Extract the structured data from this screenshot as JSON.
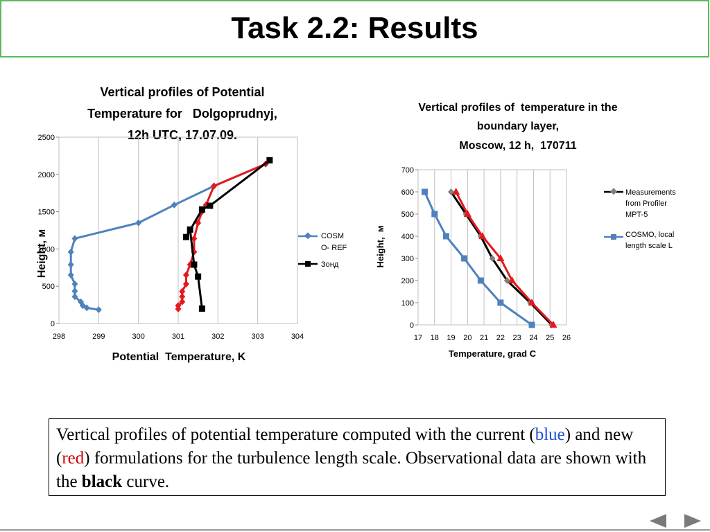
{
  "slide": {
    "title": "Task 2.2: Results",
    "caption": {
      "p1": "Vertical profiles of potential temperature computed with the current (",
      "blue": "blue",
      "p2": ") and new (",
      "red": "red",
      "p3": ") formulations for the turbulence length scale. Observational data are shown with the ",
      "black": "black",
      "p4": " curve."
    },
    "nav": {
      "prev_icon": "triangle-left-icon",
      "next_icon": "triangle-right-icon"
    },
    "colors": {
      "title_border": "#5cb85c",
      "blue": "#4f81bd",
      "red": "#e31a1c",
      "black": "#000000",
      "gray_marker": "#7f7f7f"
    }
  },
  "chart_data": [
    {
      "type": "line",
      "title": [
        "Vertical profiles of  Potential",
        "Temperature for   Dolgoprudnyj,",
        "12h UTC,  17.07.09."
      ],
      "xlabel": "Potential  Temperature, K",
      "ylabel": "Height, м",
      "xlim": [
        298,
        304
      ],
      "ylim": [
        0,
        2500
      ],
      "xticks": [
        "298",
        "299",
        "300",
        "301",
        "302",
        "303",
        "304"
      ],
      "yticks": [
        "0",
        "500",
        "1000",
        "1500",
        "2000",
        "2500"
      ],
      "grid": "vertical",
      "legend": "right",
      "series": [
        {
          "name": "COSMO- REF",
          "legend_lines": [
            "COSM",
            "O- REF"
          ],
          "color": "#4f81bd",
          "marker": "diamond",
          "points": [
            [
              299.0,
              185
            ],
            [
              298.7,
              210
            ],
            [
              298.6,
              240
            ],
            [
              298.55,
              290
            ],
            [
              298.4,
              360
            ],
            [
              298.4,
              435
            ],
            [
              298.4,
              530
            ],
            [
              298.3,
              650
            ],
            [
              298.3,
              790
            ],
            [
              298.3,
              960
            ],
            [
              298.4,
              1140
            ],
            [
              300.0,
              1350
            ],
            [
              300.9,
              1590
            ],
            [
              301.9,
              1845
            ],
            [
              303.2,
              2140
            ]
          ]
        },
        {
          "name": "",
          "color": "#e31a1c",
          "marker": "diamond",
          "points": [
            [
              301.0,
              195
            ],
            [
              301.0,
              240
            ],
            [
              301.1,
              290
            ],
            [
              301.1,
              360
            ],
            [
              301.1,
              430
            ],
            [
              301.2,
              530
            ],
            [
              301.2,
              650
            ],
            [
              301.3,
              790
            ],
            [
              301.4,
              960
            ],
            [
              301.4,
              1140
            ],
            [
              301.5,
              1350
            ],
            [
              301.6,
              1500
            ],
            [
              301.7,
              1590
            ],
            [
              301.9,
              1845
            ],
            [
              303.2,
              2140
            ]
          ]
        },
        {
          "name": "Зонд",
          "legend_lines": [
            "Зонд"
          ],
          "color": "#000000",
          "marker": "square",
          "points": [
            [
              301.6,
              200
            ],
            [
              301.5,
              630
            ],
            [
              301.4,
              790
            ],
            [
              301.3,
              1260
            ],
            [
              301.2,
              1160
            ],
            [
              301.6,
              1530
            ],
            [
              301.8,
              1580
            ],
            [
              303.3,
              2190
            ]
          ]
        }
      ]
    },
    {
      "type": "line",
      "title": [
        "Vertical profiles of  temperature in the",
        "boundary layer,",
        "Moscow, 12 h,  170711"
      ],
      "xlabel": "Temperature, grad C",
      "ylabel": "Height,  м",
      "xlim": [
        17,
        26
      ],
      "ylim": [
        0,
        700
      ],
      "xticks": [
        "17",
        "18",
        "19",
        "20",
        "21",
        "22",
        "23",
        "24",
        "25",
        "26"
      ],
      "yticks": [
        "0",
        "100",
        "200",
        "300",
        "400",
        "500",
        "600",
        "700"
      ],
      "grid": "vertical",
      "legend": "right",
      "series": [
        {
          "name": "Measurements from Profiler MPT-5",
          "legend_lines": [
            "Measurements",
            "from Profiler",
            "MPT-5"
          ],
          "color": "#000000",
          "marker": "diamond",
          "points": [
            [
              25.1,
              0
            ],
            [
              23.8,
              100
            ],
            [
              22.4,
              200
            ],
            [
              21.5,
              300
            ],
            [
              20.8,
              400
            ],
            [
              19.9,
              500
            ],
            [
              19.0,
              600
            ]
          ]
        },
        {
          "name": "",
          "color": "#e31a1c",
          "marker": "triangle",
          "points": [
            [
              25.2,
              0
            ],
            [
              23.9,
              100
            ],
            [
              22.7,
              200
            ],
            [
              22.0,
              300
            ],
            [
              20.9,
              400
            ],
            [
              20.0,
              500
            ],
            [
              19.3,
              600
            ]
          ]
        },
        {
          "name": "COSMO, local length scale L",
          "legend_lines": [
            "COSMO, local",
            "length scale L"
          ],
          "color": "#4f81bd",
          "marker": "square",
          "points": [
            [
              23.9,
              0
            ],
            [
              22.0,
              100
            ],
            [
              20.8,
              200
            ],
            [
              19.8,
              300
            ],
            [
              18.7,
              400
            ],
            [
              18.0,
              500
            ],
            [
              17.4,
              600
            ]
          ]
        }
      ]
    }
  ]
}
